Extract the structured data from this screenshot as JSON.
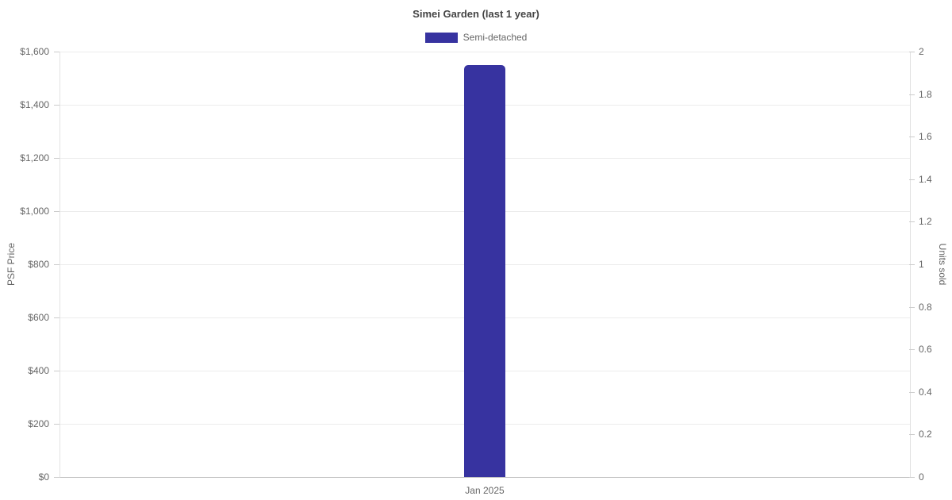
{
  "chart": {
    "title": "Simei Garden (last 1 year)",
    "legend": {
      "items": [
        {
          "label": "Semi-detached",
          "color": "#3733A0"
        }
      ]
    },
    "left_axis": {
      "title": "PSF Price",
      "ticks": [
        "$1,600",
        "$1,400",
        "$1,200",
        "$1,000",
        "$800",
        "$600",
        "$400",
        "$200",
        "$0"
      ]
    },
    "right_axis": {
      "title": "Units sold",
      "ticks": [
        "2",
        "1.8",
        "1.6",
        "1.4",
        "1.2",
        "1",
        "0.8",
        "0.6",
        "0.4",
        "0.2",
        "0"
      ]
    },
    "x_axis": {
      "ticks": [
        "Jan 2025"
      ]
    }
  },
  "chart_data": {
    "type": "bar",
    "title": "Simei Garden (last 1 year)",
    "categories": [
      "Jan 2025"
    ],
    "series": [
      {
        "name": "Semi-detached",
        "values": [
          1550
        ],
        "color": "#3733A0",
        "y_axis": "left"
      }
    ],
    "xlabel": "",
    "y_left": {
      "label": "PSF Price",
      "min": 0,
      "max": 1600,
      "step": 200,
      "tick_prefix": "$"
    },
    "y_right": {
      "label": "Units sold",
      "min": 0,
      "max": 2,
      "step": 0.2
    },
    "legend_position": "top",
    "grid": "horizontal"
  }
}
